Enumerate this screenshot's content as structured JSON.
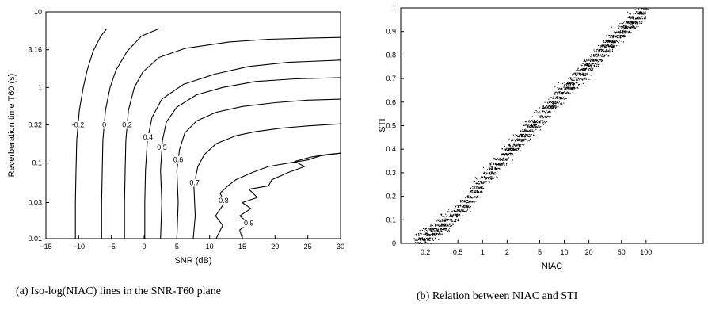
{
  "captions": {
    "a": "(a) Iso-log(NIAC) lines in the SNR-T60 plane",
    "b": "(b) Relation between NIAC and STI"
  },
  "chart_data": [
    {
      "type": "line",
      "xlabel": "SNR (dB)",
      "ylabel": "Reverberation time T60 (s)",
      "xlim": [
        -15,
        30
      ],
      "ylim": [
        0.01,
        10
      ],
      "yscale": "log",
      "x_ticks": [
        "−15",
        "−10",
        "−5",
        "0",
        "5",
        "10",
        "15",
        "20",
        "25",
        "30"
      ],
      "y_ticks": [
        "0.01",
        "0.03",
        "0.1",
        "0.32",
        "1",
        "3.16",
        "10"
      ],
      "grid": false,
      "series": [
        {
          "name": "-0.2",
          "x": [
            -10.5,
            -10.5,
            -10.4,
            -10.3,
            -9.9,
            -9.3,
            -8.7,
            -7.8,
            -6.6,
            -5.7
          ],
          "y": [
            0.01,
            0.03,
            0.08,
            0.2,
            0.5,
            1.0,
            1.7,
            3.0,
            4.8,
            6.0
          ]
        },
        {
          "name": "0",
          "x": [
            -6.5,
            -6.5,
            -6.4,
            -6.3,
            -5.9,
            -5.2,
            -4.3,
            -2.6,
            -0.4,
            2.3
          ],
          "y": [
            0.01,
            0.03,
            0.08,
            0.2,
            0.5,
            1.0,
            1.7,
            3.0,
            4.8,
            6.0
          ]
        },
        {
          "name": "0.2",
          "x": [
            -3.0,
            -3.0,
            -2.9,
            -2.8,
            -2.4,
            -1.5,
            -0.2,
            2.3,
            6.3,
            13.0,
            19.0,
            25.0,
            30.0
          ],
          "y": [
            0.01,
            0.03,
            0.08,
            0.2,
            0.5,
            1.0,
            1.6,
            2.5,
            3.3,
            4.0,
            4.35,
            4.5,
            4.6
          ]
        },
        {
          "name": "0.4",
          "x": [
            0.1,
            0.1,
            0.2,
            0.5,
            1.2,
            2.7,
            6.0,
            10.8,
            16.0,
            22.0,
            30.0
          ],
          "y": [
            0.01,
            0.03,
            0.08,
            0.2,
            0.4,
            0.7,
            1.1,
            1.5,
            1.9,
            2.15,
            2.3
          ]
        },
        {
          "name": "0.5",
          "x": [
            2.5,
            2.7,
            2.5,
            2.8,
            3.4,
            5.0,
            8.0,
            12.0,
            17.0,
            23.0,
            30.0
          ],
          "y": [
            0.01,
            0.03,
            0.08,
            0.2,
            0.35,
            0.55,
            0.8,
            1.0,
            1.2,
            1.3,
            1.35
          ]
        },
        {
          "name": "0.6",
          "x": [
            5.0,
            5.2,
            5.0,
            5.4,
            6.2,
            8.0,
            11.0,
            15.0,
            20.0,
            25.0,
            30.0
          ],
          "y": [
            0.01,
            0.03,
            0.08,
            0.15,
            0.25,
            0.36,
            0.47,
            0.56,
            0.63,
            0.68,
            0.7
          ]
        },
        {
          "name": "0.7",
          "x": [
            7.5,
            7.8,
            7.6,
            8.2,
            9.2,
            11.0,
            14.0,
            17.0,
            21.0,
            25.0,
            30.0
          ],
          "y": [
            0.01,
            0.02,
            0.05,
            0.09,
            0.13,
            0.18,
            0.23,
            0.26,
            0.29,
            0.31,
            0.33
          ]
        },
        {
          "name": "0.8",
          "x": [
            11.0,
            12.0,
            10.9,
            12.3,
            11.6,
            12.8,
            14.0,
            16.5,
            19.0,
            22.0,
            25.0,
            27.0,
            30.0
          ],
          "y": [
            0.01,
            0.015,
            0.02,
            0.03,
            0.04,
            0.05,
            0.06,
            0.075,
            0.09,
            0.1,
            0.11,
            0.125,
            0.135
          ]
        },
        {
          "name": "0.9",
          "x": [
            15.0,
            14.6,
            16.0,
            14.6,
            16.3,
            15.0,
            17.3,
            16.0,
            19.0,
            19.5,
            22.0,
            24.5,
            23.0,
            25.5,
            28.0,
            30.0
          ],
          "y": [
            0.01,
            0.013,
            0.016,
            0.02,
            0.025,
            0.03,
            0.035,
            0.045,
            0.05,
            0.06,
            0.075,
            0.09,
            0.105,
            0.12,
            0.13,
            0.135
          ]
        }
      ]
    },
    {
      "type": "scatter",
      "xlabel": "NIAC",
      "ylabel": "STI",
      "xscale": "log",
      "xlim": [
        0.1,
        500
      ],
      "ylim": [
        0,
        1
      ],
      "x_ticks": [
        "0.2",
        "0.5",
        "1",
        "2",
        "5",
        "10",
        "20",
        "50",
        "100"
      ],
      "y_ticks": [
        "0",
        "0.1",
        "0.2",
        "0.3",
        "0.4",
        "0.5",
        "0.6",
        "0.7",
        "0.8",
        "0.9",
        "1"
      ],
      "grid": false,
      "trend": {
        "x": [
          0.15,
          0.2,
          0.3,
          0.5,
          1,
          2,
          5,
          10,
          20,
          50,
          100
        ],
        "y": [
          0.0,
          0.03,
          0.07,
          0.13,
          0.26,
          0.39,
          0.53,
          0.65,
          0.76,
          0.9,
          1.0
        ]
      },
      "spread_sti": 0.06
    }
  ]
}
